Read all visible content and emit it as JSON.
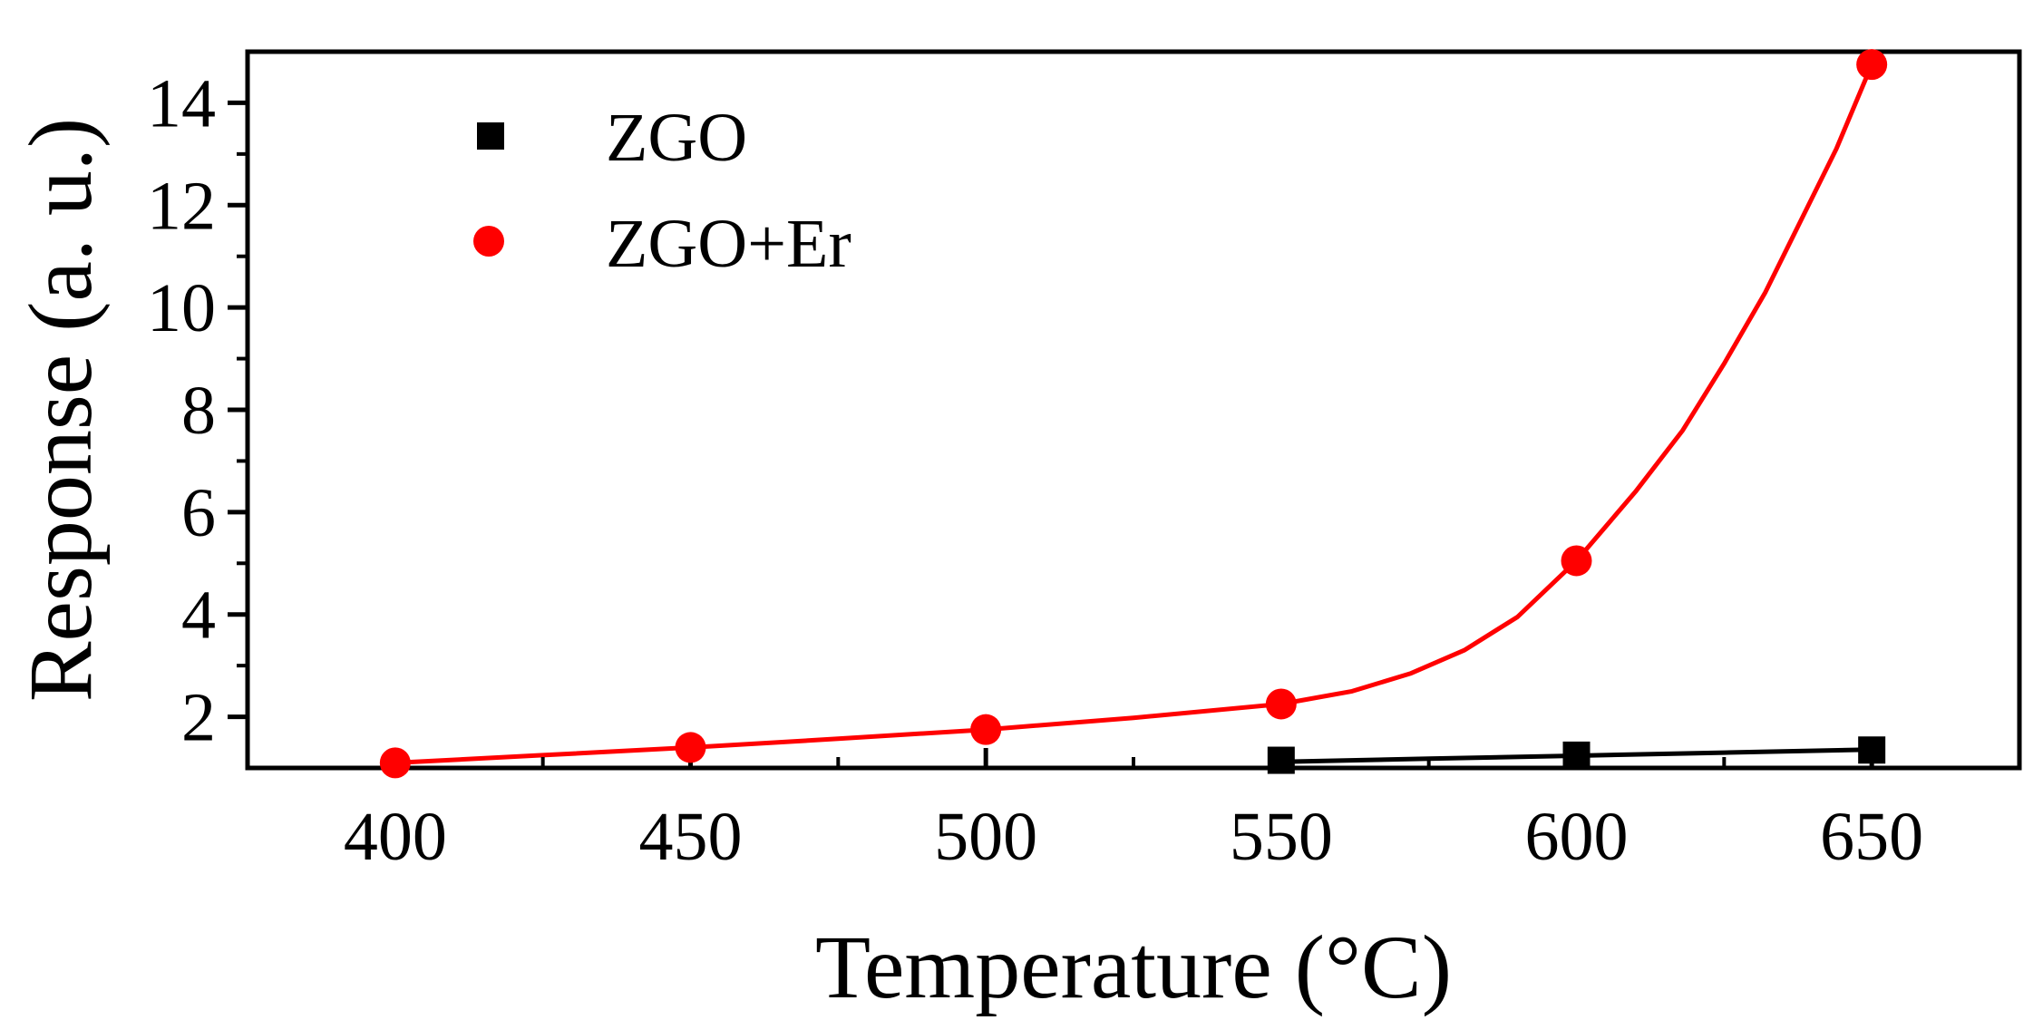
{
  "chart_data": {
    "type": "scatter",
    "title": "",
    "xlabel": "Temperature (°C)",
    "ylabel": "Response (a. u.)",
    "xlim": [
      375,
      675
    ],
    "ylim": [
      1,
      15
    ],
    "x_ticks": [
      400,
      450,
      500,
      550,
      600,
      650
    ],
    "x_tick_labels": [
      "400",
      "450",
      "500",
      "550",
      "600",
      "650"
    ],
    "y_ticks": [
      2,
      4,
      6,
      8,
      10,
      12,
      14
    ],
    "y_tick_labels": [
      "2",
      "4",
      "6",
      "8",
      "10",
      "12",
      "14"
    ],
    "grid": false,
    "legend_position": "top-left",
    "series": [
      {
        "name": "ZGO",
        "marker": "square",
        "color": "#000000",
        "x": [
          550,
          600,
          650
        ],
        "y": [
          1.15,
          1.25,
          1.35
        ],
        "fit_x": [
          550,
          575,
          600,
          625,
          650
        ],
        "fit_y": [
          1.12,
          1.18,
          1.24,
          1.3,
          1.36
        ]
      },
      {
        "name": "ZGO+Er",
        "marker": "circle",
        "color": "#ff0000",
        "x": [
          400,
          450,
          500,
          550,
          600,
          650
        ],
        "y": [
          1.1,
          1.4,
          1.75,
          2.25,
          5.05,
          14.75
        ],
        "fit_x": [
          400,
          425,
          450,
          475,
          500,
          525,
          550,
          562,
          572,
          581,
          590,
          600,
          610,
          618,
          625,
          632,
          638,
          644,
          650
        ],
        "fit_y": [
          1.1,
          1.25,
          1.4,
          1.57,
          1.75,
          1.98,
          2.25,
          2.5,
          2.85,
          3.3,
          3.95,
          5.05,
          6.4,
          7.6,
          8.9,
          10.3,
          11.7,
          13.1,
          14.75
        ]
      }
    ]
  }
}
